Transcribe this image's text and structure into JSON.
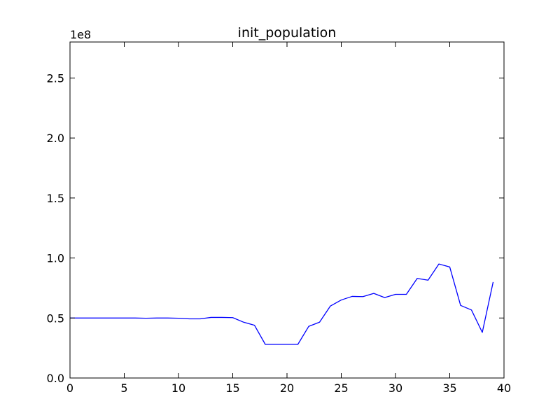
{
  "chart_data": {
    "type": "line",
    "title": "init_population",
    "xlabel": "",
    "ylabel": "",
    "y_offset_label": "1e8",
    "xlim": [
      0,
      40
    ],
    "ylim": [
      0,
      2.8
    ],
    "x_ticks": [
      0,
      5,
      10,
      15,
      20,
      25,
      30,
      35,
      40
    ],
    "x_tick_labels": [
      "0",
      "5",
      "10",
      "15",
      "20",
      "25",
      "30",
      "35",
      "40"
    ],
    "y_ticks": [
      0.0,
      0.5,
      1.0,
      1.5,
      2.0,
      2.5
    ],
    "y_tick_labels": [
      "0.0",
      "0.5",
      "1.0",
      "1.5",
      "2.0",
      "2.5"
    ],
    "grid": false,
    "line_color": "#0000ff",
    "series": [
      {
        "x": [
          0,
          1,
          2,
          3,
          4,
          5,
          6,
          7,
          8,
          9,
          10,
          11,
          12,
          13,
          14,
          15,
          16,
          17,
          18,
          19,
          20,
          21,
          22,
          23,
          24,
          25,
          26,
          27,
          28,
          29,
          30,
          31,
          32,
          33,
          34,
          35,
          36,
          37,
          38,
          39
        ],
        "values": [
          0.5,
          0.5,
          0.5,
          0.5,
          0.5,
          0.5,
          0.5,
          0.498,
          0.5,
          0.5,
          0.498,
          0.493,
          0.493,
          0.505,
          0.505,
          0.503,
          0.465,
          0.44,
          0.28,
          0.28,
          0.28,
          0.28,
          0.43,
          0.465,
          0.6,
          0.65,
          0.68,
          0.678,
          0.705,
          0.67,
          0.697,
          0.697,
          0.83,
          0.815,
          0.95,
          0.925,
          0.605,
          0.567,
          0.38,
          0.8
        ]
      }
    ]
  }
}
